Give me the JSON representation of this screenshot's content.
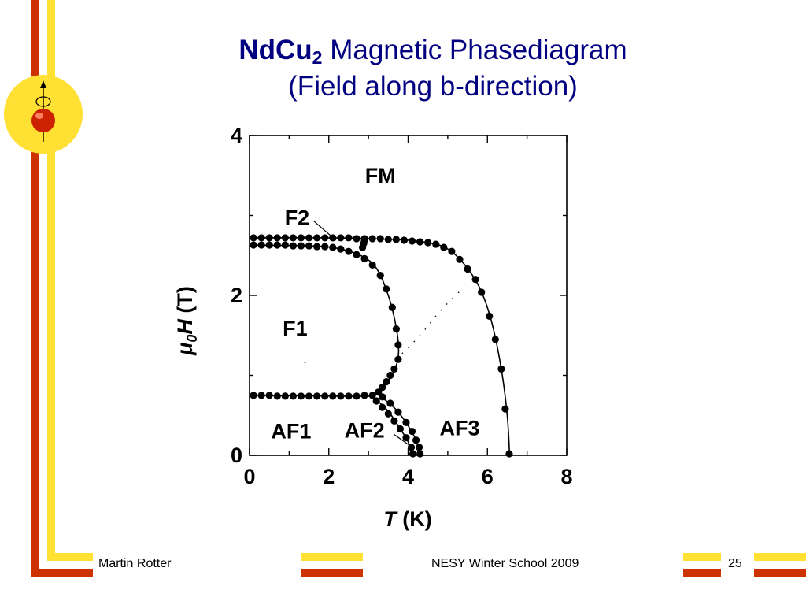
{
  "slide": {
    "title_line1_formula": "NdCu",
    "title_line1_subscript": "2",
    "title_line1_rest": " Magnetic Phasediagram",
    "title_line2": "(Field along b-direction)",
    "footer_author": "Martin Rotter",
    "footer_event": "NESY Winter School 2009",
    "page_number": "25"
  },
  "colors": {
    "title": "#000080",
    "accent_red": "#cc3300",
    "accent_yellow": "#ffe033",
    "logo_circle": "#ffe033",
    "logo_ball": "#cc2200"
  },
  "icons": [
    "spin-logo-icon"
  ],
  "chart_data": {
    "type": "scatter",
    "xlabel_symbol": "T",
    "xlabel_unit": " (K)",
    "ylabel_symbol_mu": "μ",
    "ylabel_symbol_sub": "0",
    "ylabel_symbol_h": "H",
    "ylabel_unit": " (T)",
    "xlim": [
      0,
      8
    ],
    "ylim": [
      0,
      4
    ],
    "xticks": [
      "0",
      "2",
      "4",
      "6",
      "8"
    ],
    "yticks": [
      "0",
      "2",
      "4"
    ],
    "grid": false,
    "phase_labels": [
      {
        "text": "FM",
        "x": 3.3,
        "y": 3.48
      },
      {
        "text": "F2",
        "x": 1.2,
        "y": 2.95
      },
      {
        "text": "F1",
        "x": 1.15,
        "y": 1.57
      },
      {
        "text": "AF1",
        "x": 1.05,
        "y": 0.28
      },
      {
        "text": "AF2",
        "x": 2.9,
        "y": 0.29
      },
      {
        "text": "AF3",
        "x": 5.3,
        "y": 0.32
      }
    ],
    "series": [
      {
        "points": [
          [
            0.1,
            2.72
          ],
          [
            0.3,
            2.72
          ],
          [
            0.5,
            2.72
          ],
          [
            0.7,
            2.72
          ],
          [
            0.9,
            2.72
          ],
          [
            1.1,
            2.72
          ],
          [
            1.3,
            2.72
          ],
          [
            1.5,
            2.72
          ],
          [
            1.7,
            2.72
          ],
          [
            1.9,
            2.72
          ],
          [
            2.1,
            2.72
          ],
          [
            2.3,
            2.72
          ],
          [
            2.5,
            2.72
          ],
          [
            2.7,
            2.71
          ],
          [
            2.9,
            2.71
          ],
          [
            3.1,
            2.71
          ],
          [
            3.3,
            2.71
          ],
          [
            3.5,
            2.7
          ],
          [
            3.7,
            2.7
          ],
          [
            3.9,
            2.69
          ],
          [
            4.1,
            2.68
          ],
          [
            4.3,
            2.67
          ],
          [
            4.5,
            2.66
          ],
          [
            4.7,
            2.64
          ],
          [
            4.9,
            2.6
          ],
          [
            5.1,
            2.55
          ],
          [
            5.3,
            2.45
          ],
          [
            5.5,
            2.33
          ],
          [
            5.7,
            2.2
          ],
          [
            5.85,
            2.04
          ],
          [
            6.05,
            1.74
          ],
          [
            6.2,
            1.45
          ],
          [
            6.35,
            1.08
          ],
          [
            6.45,
            0.58
          ],
          [
            6.55,
            0.02
          ]
        ]
      },
      {
        "points": [
          [
            0.1,
            2.63
          ],
          [
            0.3,
            2.63
          ],
          [
            0.5,
            2.63
          ],
          [
            0.7,
            2.63
          ],
          [
            0.9,
            2.63
          ],
          [
            1.1,
            2.62
          ],
          [
            1.3,
            2.62
          ],
          [
            1.5,
            2.62
          ],
          [
            1.7,
            2.61
          ],
          [
            1.9,
            2.61
          ],
          [
            2.1,
            2.6
          ],
          [
            2.3,
            2.58
          ],
          [
            2.5,
            2.55
          ],
          [
            2.7,
            2.51
          ],
          [
            2.9,
            2.46
          ],
          [
            3.1,
            2.38
          ],
          [
            3.3,
            2.25
          ],
          [
            3.45,
            2.08
          ],
          [
            3.6,
            1.85
          ],
          [
            3.7,
            1.58
          ],
          [
            3.75,
            1.38
          ],
          [
            3.75,
            1.2
          ],
          [
            3.65,
            1.08
          ],
          [
            3.55,
            1.0
          ],
          [
            3.45,
            0.92
          ],
          [
            3.35,
            0.85
          ],
          [
            3.25,
            0.79
          ],
          [
            3.1,
            0.75
          ],
          [
            2.9,
            0.75
          ],
          [
            2.7,
            0.74
          ],
          [
            2.5,
            0.74
          ],
          [
            2.3,
            0.74
          ],
          [
            2.1,
            0.74
          ],
          [
            1.9,
            0.74
          ],
          [
            1.7,
            0.74
          ],
          [
            1.5,
            0.74
          ],
          [
            1.3,
            0.74
          ],
          [
            1.1,
            0.74
          ],
          [
            0.9,
            0.74
          ],
          [
            0.7,
            0.74
          ],
          [
            0.5,
            0.75
          ],
          [
            0.3,
            0.75
          ],
          [
            0.1,
            0.75
          ]
        ]
      },
      {
        "points": [
          [
            2.85,
            2.6
          ],
          [
            2.88,
            2.65
          ],
          [
            2.9,
            2.69
          ]
        ]
      },
      {
        "points": [
          [
            3.2,
            0.68
          ],
          [
            3.35,
            0.6
          ],
          [
            3.5,
            0.52
          ],
          [
            3.65,
            0.43
          ],
          [
            3.8,
            0.33
          ],
          [
            3.95,
            0.22
          ],
          [
            4.08,
            0.1
          ],
          [
            4.12,
            0.02
          ]
        ]
      },
      {
        "points": [
          [
            3.35,
            0.73
          ],
          [
            3.55,
            0.65
          ],
          [
            3.75,
            0.54
          ],
          [
            3.95,
            0.41
          ],
          [
            4.1,
            0.3
          ],
          [
            4.2,
            0.19
          ],
          [
            4.28,
            0.1
          ],
          [
            4.3,
            0.02
          ]
        ]
      }
    ],
    "curves": [
      [
        [
          0,
          2.72
        ],
        [
          2,
          2.72
        ],
        [
          3,
          2.71
        ],
        [
          4,
          2.69
        ],
        [
          4.6,
          2.65
        ],
        [
          5.0,
          2.58
        ],
        [
          5.4,
          2.4
        ],
        [
          5.8,
          2.1
        ],
        [
          6.1,
          1.68
        ],
        [
          6.35,
          1.08
        ],
        [
          6.5,
          0.5
        ],
        [
          6.56,
          0.0
        ]
      ],
      [
        [
          0,
          2.63
        ],
        [
          1.5,
          2.62
        ],
        [
          2.2,
          2.59
        ],
        [
          2.8,
          2.5
        ],
        [
          3.2,
          2.34
        ],
        [
          3.5,
          2.0
        ],
        [
          3.7,
          1.6
        ],
        [
          3.76,
          1.3
        ],
        [
          3.68,
          1.1
        ],
        [
          3.4,
          0.87
        ],
        [
          3.1,
          0.75
        ],
        [
          2.5,
          0.74
        ],
        [
          0,
          0.75
        ]
      ],
      [
        [
          3.1,
          0.74
        ],
        [
          3.5,
          0.55
        ],
        [
          3.8,
          0.33
        ],
        [
          4.0,
          0.17
        ],
        [
          4.1,
          0.0
        ]
      ],
      [
        [
          3.3,
          0.74
        ],
        [
          3.7,
          0.57
        ],
        [
          4.0,
          0.37
        ],
        [
          4.2,
          0.19
        ],
        [
          4.3,
          0.0
        ]
      ],
      [
        [
          2.82,
          2.58
        ],
        [
          2.9,
          2.7
        ]
      ]
    ],
    "dotted_boundary": [
      [
        3.7,
        1.2
      ],
      [
        4.3,
        1.5
      ],
      [
        4.8,
        1.8
      ],
      [
        5.3,
        2.05
      ]
    ],
    "leaders": [
      {
        "from": [
          1.62,
          2.93
        ],
        "to": [
          2.18,
          2.69
        ]
      },
      {
        "from": [
          3.65,
          0.26
        ],
        "to": [
          4.02,
          0.13
        ]
      }
    ],
    "stray_dots": [
      [
        1.4,
        1.16
      ]
    ]
  }
}
